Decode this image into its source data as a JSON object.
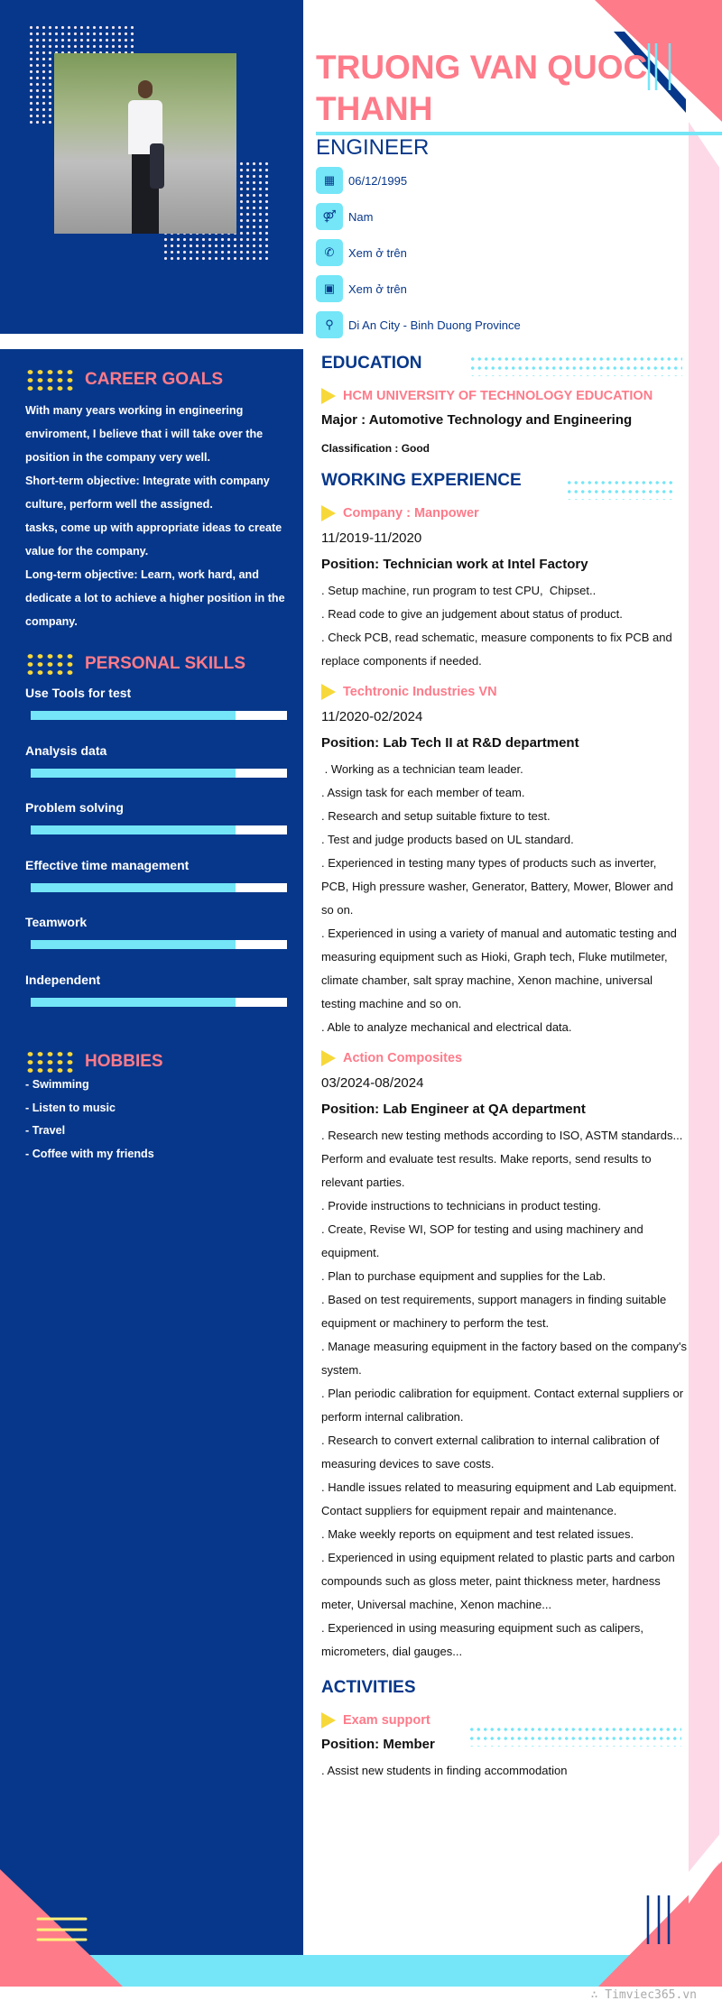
{
  "header": {
    "name": "TRUONG VAN QUOC THANH",
    "title": "ENGINEER"
  },
  "contacts": [
    {
      "icon": "calendar-icon",
      "value": "06/12/1995"
    },
    {
      "icon": "gender-icon",
      "value": "Nam"
    },
    {
      "icon": "phone-icon",
      "value": "Xem ở trên"
    },
    {
      "icon": "email-icon",
      "value": "Xem ở trên"
    },
    {
      "icon": "location-pin-icon",
      "value": "Di An City - Binh Duong Province"
    }
  ],
  "career_goals": {
    "title": "CAREER GOALS",
    "lines": [
      "With many years working in engineering enviroment, I believe that i will take over the position in the company very well.",
      "Short-term objective: Integrate with company culture, perform well the assigned.",
      "tasks, come up with appropriate ideas to create value for the company.",
      "Long-term objective: Learn, work hard, and dedicate a lot to achieve a higher position in the company."
    ]
  },
  "skills": {
    "title": "PERSONAL SKILLS",
    "items": [
      {
        "label": "Use Tools for test",
        "level": 0.8
      },
      {
        "label": "Analysis data",
        "level": 0.8
      },
      {
        "label": "Problem solving",
        "level": 0.8
      },
      {
        "label": "Effective time management",
        "level": 0.8
      },
      {
        "label": "Teamwork",
        "level": 0.8
      },
      {
        "label": "Independent",
        "level": 0.8
      }
    ]
  },
  "hobbies": {
    "title": "HOBBIES",
    "items": [
      "- Swimming",
      "- Listen to music",
      "- Travel",
      "- Coffee with my friends"
    ]
  },
  "education": {
    "title": "EDUCATION",
    "school": "HCM UNIVERSITY OF TECHNOLOGY EDUCATION",
    "major": "Major : Automotive Technology and Engineering",
    "classification": "Classification : Good"
  },
  "experience": {
    "title": "WORKING EXPERIENCE",
    "jobs": [
      {
        "company": "Company : Manpower",
        "period": "11/2019-11/2020",
        "position": "Position: Technician work at Intel Factory",
        "details": [
          ". Setup machine, run program to test CPU,  Chipset..",
          ". Read code to give an judgement about status of product.",
          ". Check PCB, read schematic, measure components to fix PCB and replace components if needed."
        ]
      },
      {
        "company": "Techtronic Industries VN",
        "period": "11/2020-02/2024",
        "position": "Position: Lab Tech II at R&D  department",
        "details": [
          " . Working as a technician team leader.",
          ". Assign task for each member of team.",
          ". Research and setup suitable fixture to test.",
          ". Test and judge products based on UL standard.",
          ". Experienced in testing many types of products such as inverter, PCB, High pressure washer, Generator, Battery, Mower, Blower and so on.",
          ". Experienced in using a variety of manual and automatic testing and measuring equipment such as Hioki, Graph tech, Fluke mutilmeter, climate chamber, salt spray machine, Xenon machine, universal testing machine and so on.",
          ". Able to analyze mechanical and electrical data."
        ]
      },
      {
        "company": "Action Composites",
        "period": "03/2024-08/2024",
        "position": "Position: Lab Engineer at QA department",
        "details": [
          ". Research new testing methods according to ISO, ASTM standards... Perform and evaluate test results. Make reports, send results to relevant parties.",
          ". Provide instructions to technicians in product testing.",
          ". Create, Revise WI, SOP for testing and using machinery and equipment.",
          ". Plan to purchase equipment and supplies for the Lab.",
          ". Based on test requirements, support managers in finding suitable equipment or machinery to perform the test.",
          ". Manage measuring equipment in the factory based on the company's system.",
          ". Plan periodic calibration for equipment. Contact external suppliers or perform internal calibration.",
          ". Research to convert external calibration to internal calibration of measuring devices to save costs.",
          ". Handle issues related to measuring equipment and Lab equipment. Contact suppliers for equipment repair and maintenance.",
          ". Make weekly reports on equipment and test related issues.",
          ". Experienced in using equipment related to plastic parts and carbon compounds such as gloss meter, paint thickness meter, hardness meter, Universal machine, Xenon machine...",
          ". Experienced in using measuring equipment such as calipers, micrometers, dial gauges..."
        ]
      }
    ]
  },
  "activities": {
    "title": "ACTIVITIES",
    "items": [
      {
        "name": "Exam support",
        "position": "Position: Member",
        "details": [
          ". Assist new students in finding accommodation"
        ]
      }
    ]
  },
  "footer": {
    "watermark": "∴ Timviec365.vn"
  },
  "colors": {
    "navy": "#07378a",
    "pink": "#fe7b8a",
    "cyan": "#74e6f7",
    "yellow": "#f7d83a",
    "light_pink": "#fdd9e8"
  }
}
